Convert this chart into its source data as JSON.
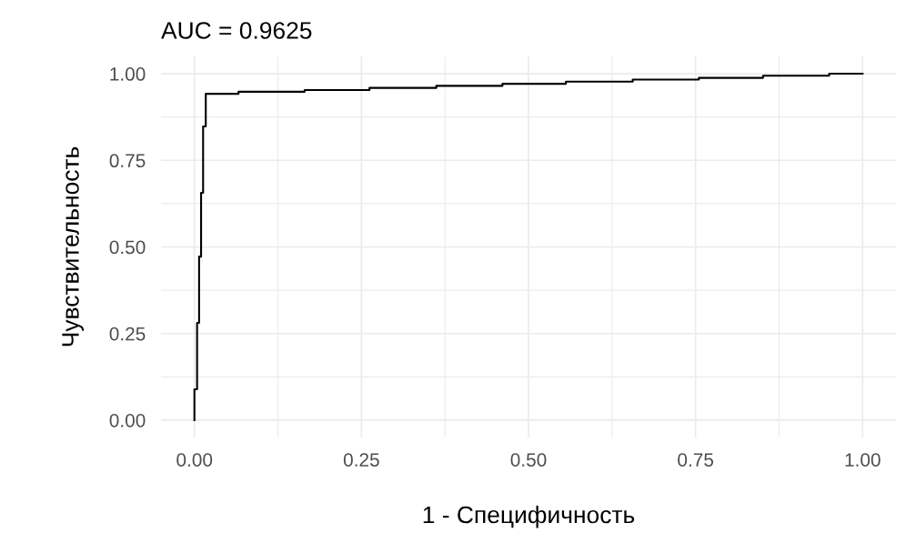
{
  "chart_data": {
    "type": "line",
    "title": "AUC = 0.9625",
    "xlabel": "1 - Специфичность",
    "ylabel": "Чувствительность",
    "x": [
      0,
      0,
      0.004,
      0.004,
      0.007,
      0.007,
      0.01,
      0.01,
      0.013,
      0.013,
      0.017,
      0.017,
      0.066,
      0.066,
      0.165,
      0.165,
      0.262,
      0.262,
      0.362,
      0.362,
      0.461,
      0.461,
      0.556,
      0.556,
      0.656,
      0.656,
      0.755,
      0.755,
      0.851,
      0.851,
      0.95,
      0.95,
      1.0
    ],
    "series": [
      {
        "color": "#000000",
        "values": [
          0,
          0.089,
          0.089,
          0.281,
          0.281,
          0.472,
          0.472,
          0.656,
          0.656,
          0.848,
          0.848,
          0.942,
          0.942,
          0.948,
          0.948,
          0.953,
          0.953,
          0.959,
          0.959,
          0.965,
          0.965,
          0.971,
          0.971,
          0.977,
          0.977,
          0.983,
          0.983,
          0.988,
          0.988,
          0.994,
          0.994,
          1.0,
          1.0
        ]
      }
    ],
    "xlim": [
      -0.05,
      1.05
    ],
    "ylim": [
      -0.05,
      1.05
    ],
    "xticks": [
      {
        "value": 0,
        "label": "0.00"
      },
      {
        "value": 0.25,
        "label": "0.25"
      },
      {
        "value": 0.5,
        "label": "0.50"
      },
      {
        "value": 0.75,
        "label": "0.75"
      },
      {
        "value": 1,
        "label": "1.00"
      }
    ],
    "yticks": [
      {
        "value": 0,
        "label": "0.00"
      },
      {
        "value": 0.25,
        "label": "0.25"
      },
      {
        "value": 0.5,
        "label": "0.50"
      },
      {
        "value": 0.75,
        "label": "0.75"
      },
      {
        "value": 1,
        "label": "1.00"
      }
    ],
    "grid": true,
    "line_style": "solid"
  }
}
